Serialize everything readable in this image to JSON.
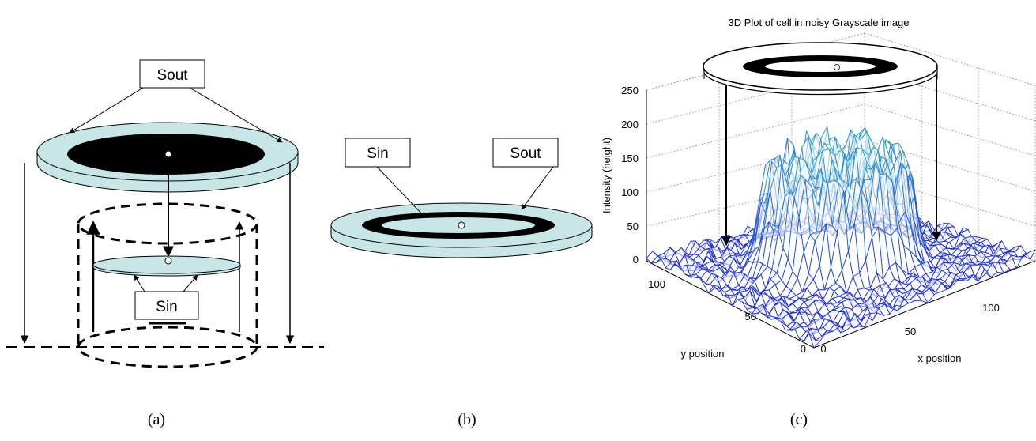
{
  "panel_a": {
    "sout_label": "Sout",
    "sin_label": "Sin",
    "caption": "(a)"
  },
  "panel_b": {
    "sin_label": "Sin",
    "sout_label": "Sout",
    "caption": "(b)"
  },
  "panel_c": {
    "title": "3D Plot of cell in noisy Grayscale image",
    "z_label": "Intensity (height)",
    "y_label": "y position",
    "x_label": "x position",
    "z_ticks": [
      "250",
      "200",
      "150",
      "100",
      "50",
      "0"
    ],
    "y_ticks": [
      "100",
      "50",
      "0"
    ],
    "x_ticks": [
      "0",
      "50",
      "100"
    ],
    "caption": "(c)"
  },
  "colors": {
    "disk_fill": "#c8e6e6",
    "mesh_low": "#1d2bd6",
    "mesh_high": "#35c0c8"
  }
}
